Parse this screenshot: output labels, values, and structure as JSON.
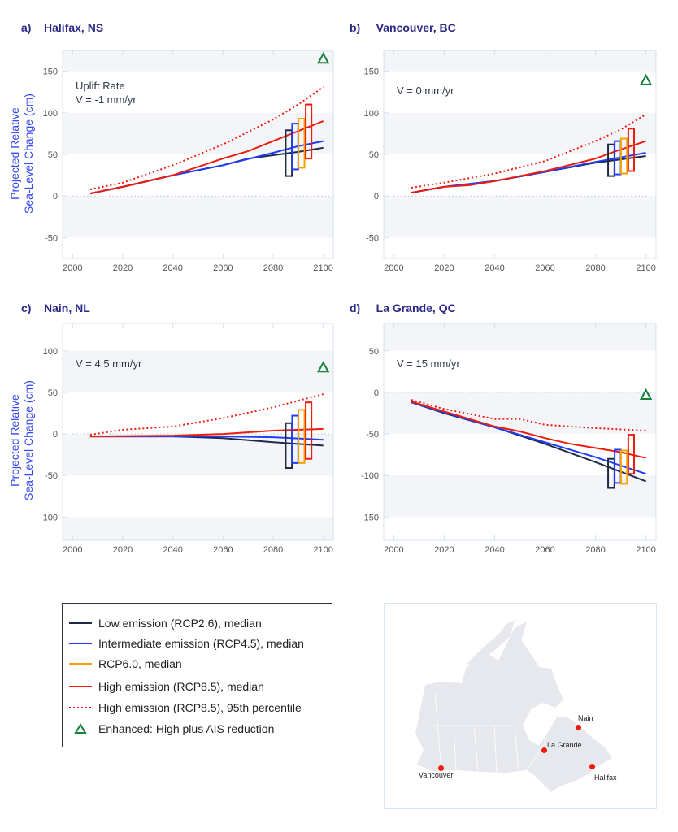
{
  "colors": {
    "low": "#1f2a44",
    "intermediate": "#1e3cff",
    "rcp60": "#f5a100",
    "high": "#ee1c0e",
    "enhanced": "#17803d",
    "band": "#f4f5f8",
    "frame": "#d5e0ee"
  },
  "y_axis_label": [
    "Projected Relative",
    "Sea-Level Change (cm)"
  ],
  "chart_data": [
    {
      "type": "line",
      "panel": "a)",
      "title": "Halifax, NS",
      "annotation": [
        "Uplift Rate",
        "V = -1 mm/yr"
      ],
      "xlim": [
        1996,
        2104
      ],
      "ylim": [
        -75,
        175
      ],
      "xticks": [
        2000,
        2020,
        2040,
        2060,
        2080,
        2100
      ],
      "yticks": [
        -50,
        0,
        50,
        100,
        150
      ],
      "series": [
        {
          "key": "low",
          "x": [
            2007,
            2020,
            2040,
            2060,
            2070,
            2080,
            2090,
            2100
          ],
          "y": [
            3,
            11,
            25,
            37,
            45,
            49,
            53,
            58
          ]
        },
        {
          "key": "intermediate",
          "x": [
            2007,
            2020,
            2040,
            2060,
            2080,
            2090,
            2100
          ],
          "y": [
            3,
            11,
            25,
            37,
            52,
            60,
            66
          ]
        },
        {
          "key": "high",
          "x": [
            2007,
            2020,
            2040,
            2060,
            2070,
            2080,
            2090,
            2100
          ],
          "y": [
            3,
            11,
            25,
            45,
            54,
            66,
            78,
            90
          ]
        },
        {
          "key": "high95",
          "x": [
            2007,
            2020,
            2040,
            2060,
            2080,
            2090,
            2100
          ],
          "y": [
            8,
            16,
            37,
            62,
            92,
            110,
            131
          ]
        }
      ],
      "ranges": [
        {
          "key": "low",
          "y": [
            24,
            79
          ]
        },
        {
          "key": "intermediate",
          "y": [
            32,
            87
          ]
        },
        {
          "key": "rcp60",
          "y": [
            34,
            93
          ]
        },
        {
          "key": "high",
          "y": [
            45,
            110
          ]
        }
      ],
      "enhanced": {
        "x": 2100,
        "y": 165
      }
    },
    {
      "type": "line",
      "panel": "b)",
      "title": "Vancouver, BC",
      "annotation": [
        "V = 0 mm/yr"
      ],
      "xlim": [
        1996,
        2104
      ],
      "ylim": [
        -75,
        175
      ],
      "xticks": [
        2000,
        2020,
        2040,
        2060,
        2080,
        2100
      ],
      "yticks": [
        -50,
        0,
        50,
        100,
        150
      ],
      "series": [
        {
          "key": "low",
          "x": [
            2007,
            2020,
            2040,
            2060,
            2080,
            2100
          ],
          "y": [
            4,
            11,
            18,
            29,
            40,
            48
          ]
        },
        {
          "key": "intermediate",
          "x": [
            2007,
            2020,
            2040,
            2060,
            2080,
            2100
          ],
          "y": [
            4,
            11,
            18,
            29,
            41,
            52
          ]
        },
        {
          "key": "high",
          "x": [
            2007,
            2020,
            2030,
            2040,
            2060,
            2080,
            2090,
            2100
          ],
          "y": [
            4,
            11,
            13,
            18,
            30,
            45,
            56,
            66
          ]
        },
        {
          "key": "high95",
          "x": [
            2007,
            2020,
            2040,
            2060,
            2080,
            2090,
            2100
          ],
          "y": [
            10,
            16,
            27,
            42,
            66,
            80,
            98
          ]
        }
      ],
      "ranges": [
        {
          "key": "low",
          "y": [
            24,
            62
          ]
        },
        {
          "key": "intermediate",
          "y": [
            26,
            66
          ]
        },
        {
          "key": "rcp60",
          "y": [
            27,
            69
          ]
        },
        {
          "key": "high",
          "y": [
            30,
            81
          ]
        }
      ],
      "enhanced": {
        "x": 2100,
        "y": 139
      }
    },
    {
      "type": "line",
      "panel": "c)",
      "title": "Nain, NL",
      "annotation": [
        "V = 4.5 mm/yr"
      ],
      "xlim": [
        1996,
        2104
      ],
      "ylim": [
        -128,
        133
      ],
      "xticks": [
        2000,
        2020,
        2040,
        2060,
        2080,
        2100
      ],
      "yticks": [
        -100,
        -50,
        0,
        50,
        100
      ],
      "series": [
        {
          "key": "low",
          "x": [
            2007,
            2040,
            2060,
            2080,
            2100
          ],
          "y": [
            -3,
            -3,
            -5,
            -10,
            -14
          ]
        },
        {
          "key": "intermediate",
          "x": [
            2007,
            2060,
            2080,
            2100
          ],
          "y": [
            -3,
            -3,
            -4,
            -7
          ]
        },
        {
          "key": "high",
          "x": [
            2007,
            2040,
            2060,
            2080,
            2100
          ],
          "y": [
            -3,
            -2,
            0,
            4,
            6
          ]
        },
        {
          "key": "high95",
          "x": [
            2007,
            2020,
            2040,
            2060,
            2080,
            2100
          ],
          "y": [
            -1,
            5,
            9,
            19,
            32,
            48
          ]
        }
      ],
      "ranges": [
        {
          "key": "low",
          "y": [
            -41,
            13
          ]
        },
        {
          "key": "intermediate",
          "y": [
            -35,
            22
          ]
        },
        {
          "key": "rcp60",
          "y": [
            -35,
            29
          ]
        },
        {
          "key": "high",
          "y": [
            -30,
            38
          ]
        }
      ],
      "enhanced": {
        "x": 2100,
        "y": 80
      }
    },
    {
      "type": "line",
      "panel": "d)",
      "title": "La Grande, QC",
      "annotation": [
        "V = 15 mm/yr"
      ],
      "xlim": [
        1996,
        2104
      ],
      "ylim": [
        -178,
        83
      ],
      "xticks": [
        2000,
        2020,
        2040,
        2060,
        2080,
        2100
      ],
      "yticks": [
        -150,
        -100,
        -50,
        0,
        50
      ],
      "series": [
        {
          "key": "low",
          "x": [
            2007,
            2020,
            2040,
            2060,
            2080,
            2100
          ],
          "y": [
            -12,
            -25,
            -42,
            -62,
            -84,
            -107
          ]
        },
        {
          "key": "intermediate",
          "x": [
            2007,
            2020,
            2040,
            2060,
            2080,
            2100
          ],
          "y": [
            -12,
            -24,
            -42,
            -60,
            -78,
            -98
          ]
        },
        {
          "key": "high",
          "x": [
            2007,
            2020,
            2040,
            2050,
            2060,
            2070,
            2080,
            2090,
            2100
          ],
          "y": [
            -11,
            -23,
            -41,
            -47,
            -55,
            -62,
            -67,
            -72,
            -79
          ]
        },
        {
          "key": "high95",
          "x": [
            2007,
            2020,
            2040,
            2050,
            2060,
            2080,
            2100
          ],
          "y": [
            -9,
            -20,
            -32,
            -32,
            -39,
            -43,
            -46
          ]
        }
      ],
      "ranges": [
        {
          "key": "low",
          "y": [
            -115,
            -80
          ]
        },
        {
          "key": "intermediate",
          "y": [
            -109,
            -69
          ]
        },
        {
          "key": "rcp60",
          "y": [
            -110,
            -70
          ]
        },
        {
          "key": "high",
          "y": [
            -98,
            -51
          ]
        }
      ],
      "enhanced": {
        "x": 2100,
        "y": -3
      }
    }
  ],
  "legend": [
    {
      "key": "low",
      "label": "Low emission (RCP2.6), median",
      "style": "solid"
    },
    {
      "key": "intermediate",
      "label": "Intermediate emission (RCP4.5), median",
      "style": "solid"
    },
    {
      "key": "rcp60",
      "label": "RCP6.0, median",
      "style": "solid"
    },
    {
      "key": "high",
      "label": "High emission (RCP8.5), median",
      "style": "solid"
    },
    {
      "key": "high",
      "label": "High emission (RCP8.5), 95th percentile",
      "style": "dotted"
    },
    {
      "key": "enhanced",
      "label": "Enhanced: High plus AIS reduction",
      "style": "triangle"
    }
  ],
  "map": {
    "cities": [
      {
        "name": "Vancouver"
      },
      {
        "name": "La Grande"
      },
      {
        "name": "Nain"
      },
      {
        "name": "Halifax"
      }
    ],
    "dot_color": "#ee1c0e",
    "land_color": "#e6e8ee"
  }
}
